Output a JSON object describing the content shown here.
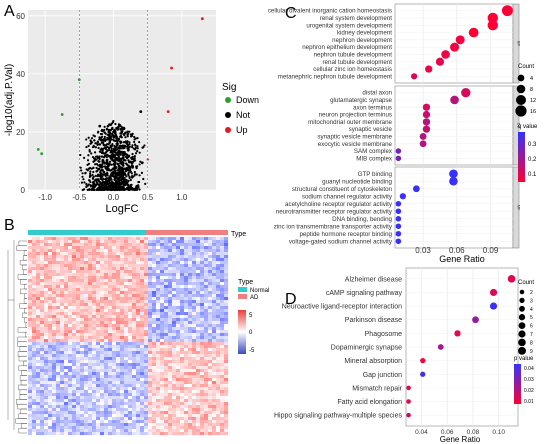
{
  "panels": {
    "A": "A",
    "B": "B",
    "C": "C",
    "D": "D"
  },
  "colors": {
    "up": "#e41a1c",
    "down": "#2ca02c",
    "not": "#000000",
    "high": "#ff0033",
    "low": "#3333ff",
    "normal": "#33cccc",
    "ad": "#f08080"
  },
  "chart_data": [
    {
      "id": "A",
      "type": "scatter",
      "title": "",
      "xlabel": "LogFC",
      "ylabel": "-log10(adj.P.Val)",
      "xlim": [
        -1.25,
        1.5
      ],
      "ylim": [
        0,
        62
      ],
      "xticks": [
        -1.0,
        -0.5,
        0.0,
        0.5,
        1.0
      ],
      "xtick_labels": [
        "-1.0",
        "-0.5",
        "0.0",
        "0.5",
        "1.0"
      ],
      "yticks": [
        0,
        20,
        40,
        60
      ],
      "ytick_labels": [
        "0",
        "20",
        "40",
        "60"
      ],
      "legend": {
        "title": "Sig",
        "position": "right",
        "entries": [
          "Down",
          "Not",
          "Up"
        ]
      },
      "threshold_lines_x": [
        -0.5,
        0.5
      ],
      "highlight_points": [
        {
          "x": 1.3,
          "y": 59,
          "group": "Up"
        },
        {
          "x": 0.85,
          "y": 42,
          "group": "Up"
        },
        {
          "x": 0.8,
          "y": 27,
          "group": "Up"
        },
        {
          "x": -0.5,
          "y": 38,
          "group": "Down"
        },
        {
          "x": -0.75,
          "y": 26,
          "group": "Down"
        },
        {
          "x": -1.1,
          "y": 14,
          "group": "Down"
        },
        {
          "x": -1.05,
          "y": 12.5,
          "group": "Down"
        },
        {
          "x": 0.4,
          "y": 27,
          "group": "Not"
        },
        {
          "x": -0.2,
          "y": 22,
          "group": "Not"
        }
      ]
    },
    {
      "id": "B",
      "type": "heatmap",
      "title": "",
      "annotation_label": "Type",
      "group_legend": {
        "title": "Type",
        "entries": [
          "Normal",
          "AD"
        ]
      },
      "color_legend_ticks": [
        "5",
        "0",
        "-5"
      ],
      "color_range": [
        -5,
        5
      ]
    },
    {
      "id": "C",
      "type": "scatter",
      "title": "",
      "xlabel": "Gene Ratio",
      "xlim": [
        0.005,
        0.11
      ],
      "xticks": [
        0.03,
        0.06,
        0.09
      ],
      "xtick_labels": [
        "0.03",
        "0.06",
        "0.09"
      ],
      "size_legend": {
        "title": "Count",
        "values": [
          4,
          8,
          12,
          16
        ]
      },
      "color_legend": {
        "title": "q value",
        "ticks": [
          "0.3",
          "0.2",
          "0.1"
        ]
      },
      "facets": [
        {
          "strip": "BP",
          "categories": [
            "cellular divalent inorganic cation homeostasis",
            "renal system development",
            "urogenital system development",
            "kidney development",
            "nephron development",
            "nephron epithelium development",
            "nephron tubule development",
            "renal tubule development",
            "cellular zinc ion homeostasis",
            "metanephric nephron tubule development"
          ],
          "x": [
            0.105,
            0.092,
            0.092,
            0.075,
            0.063,
            0.058,
            0.05,
            0.045,
            0.035,
            0.022
          ],
          "count": [
            15,
            13,
            13,
            11,
            9,
            9,
            8,
            7,
            5,
            3
          ],
          "q": [
            0.04,
            0.03,
            0.03,
            0.03,
            0.05,
            0.05,
            0.06,
            0.07,
            0.06,
            0.09
          ]
        },
        {
          "strip": "CC",
          "categories": [
            "distal axon",
            "glutamatergic synapse",
            "axon terminus",
            "neuron projection terminus",
            "mitochondrial outer membrane",
            "synaptic vesicle",
            "synaptic vesicle membrane",
            "exocytic vesicle membrane",
            "SAM complex",
            "MIB complex"
          ],
          "x": [
            0.068,
            0.058,
            0.033,
            0.033,
            0.033,
            0.033,
            0.03,
            0.03,
            0.008,
            0.008
          ],
          "count": [
            10,
            8,
            5,
            5,
            5,
            5,
            4,
            4,
            2,
            2
          ],
          "q": [
            0.1,
            0.15,
            0.1,
            0.12,
            0.15,
            0.12,
            0.15,
            0.15,
            0.25,
            0.25
          ]
        },
        {
          "strip": "MF",
          "categories": [
            "GTP binding",
            "guanyl nucleotide binding",
            "structural constituent of cytoskeleton",
            "sodium channel regulator activity",
            "acetylcholine receptor regulator activity",
            "neurotransmitter receptor regulator activity",
            "DNA binding, bending",
            "zinc ion transmembrane transporter activity",
            "peptide hormone receptor binding",
            "voltage-gated sodium channel activity"
          ],
          "x": [
            0.057,
            0.057,
            0.024,
            0.012,
            0.008,
            0.008,
            0.008,
            0.008,
            0.008,
            0.008
          ],
          "count": [
            8,
            8,
            4,
            3,
            2,
            2,
            2,
            2,
            2,
            2
          ],
          "q": [
            0.35,
            0.35,
            0.35,
            0.35,
            0.35,
            0.35,
            0.35,
            0.35,
            0.35,
            0.35
          ]
        }
      ]
    },
    {
      "id": "D",
      "type": "scatter",
      "title": "",
      "xlabel": "Gene Ratio",
      "xlim": [
        0.028,
        0.115
      ],
      "xticks": [
        0.04,
        0.06,
        0.08,
        0.1
      ],
      "xtick_labels": [
        "0.04",
        "0.06",
        "0.08",
        "0.10"
      ],
      "size_legend": {
        "title": "Count",
        "values": [
          2,
          3,
          4,
          5,
          6,
          7,
          8,
          9
        ]
      },
      "color_legend": {
        "title": "p value",
        "ticks": [
          "0.04",
          "0.03",
          "0.02",
          "0.01"
        ]
      },
      "categories": [
        "Alzheimer disease",
        "cAMP signaling pathway",
        "Neuroactive ligand-receptor interaction",
        "Parkinson disease",
        "Phagosome",
        "Dopaminergic synapse",
        "Mineral absorption",
        "Gap junction",
        "Mismatch repair",
        "Fatty acid elongation",
        "Hippo signaling pathway-multiple species"
      ],
      "x": [
        0.11,
        0.096,
        0.096,
        0.082,
        0.068,
        0.055,
        0.041,
        0.041,
        0.03,
        0.03,
        0.03
      ],
      "count": [
        8,
        7,
        7,
        6,
        5,
        4,
        3,
        3,
        2,
        2,
        2
      ],
      "p": [
        0.01,
        0.012,
        0.04,
        0.025,
        0.01,
        0.02,
        0.005,
        0.038,
        0.01,
        0.01,
        0.015
      ]
    }
  ]
}
